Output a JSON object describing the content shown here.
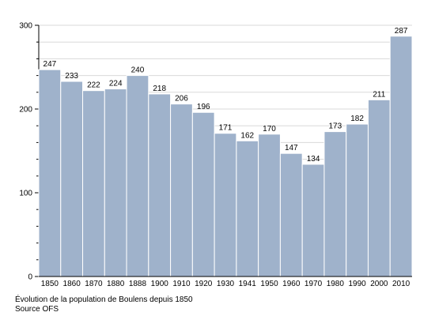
{
  "chart_data": {
    "type": "bar",
    "categories": [
      "1850",
      "1860",
      "1870",
      "1880",
      "1888",
      "1900",
      "1910",
      "1920",
      "1930",
      "1941",
      "1950",
      "1960",
      "1970",
      "1980",
      "1990",
      "2000",
      "2010"
    ],
    "values": [
      247,
      233,
      222,
      224,
      240,
      218,
      206,
      196,
      171,
      162,
      170,
      147,
      134,
      173,
      182,
      211,
      287
    ],
    "ylim": [
      0,
      300
    ],
    "yticks": [
      0,
      100,
      200,
      300
    ],
    "grid": "horizontal",
    "legend": "none",
    "bar_color": "#9fb2cb",
    "bar_edge_color": "#ffffff",
    "grid_color": "#d9d9d9"
  },
  "caption": {
    "title": "Évolution de la population de Boulens depuis 1850",
    "source": "Source OFS"
  }
}
